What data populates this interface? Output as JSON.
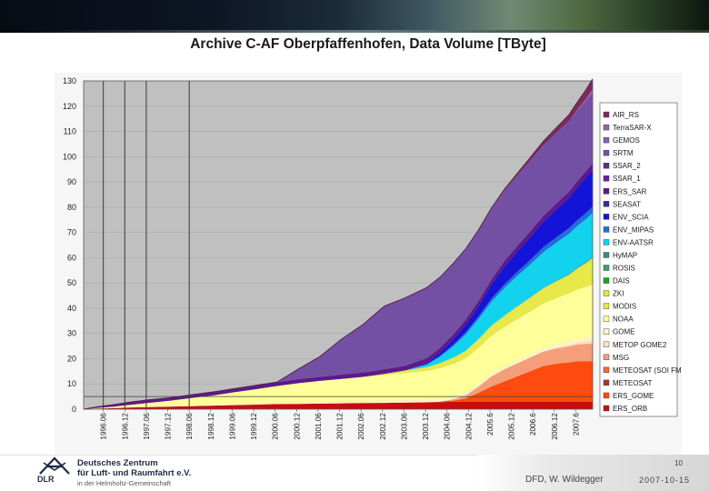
{
  "slide": {
    "title": "Archive C-AF Oberpfaffenhofen,  Data Volume [TByte]",
    "page_number": "10",
    "author": "DFD, W. Wildegger",
    "date": "2007-10-15"
  },
  "logo": {
    "acronym": "DLR",
    "line1": "Deutsches Zentrum",
    "line2": "für Luft- und Raumfahrt e.V.",
    "line3": "in der Helmholtz-Gemeinschaft"
  },
  "chart_data": {
    "type": "area",
    "stacked": true,
    "title": "Archive C-AF Oberpfaffenhofen,  Data Volume [TByte]",
    "ylim": [
      0,
      130
    ],
    "yticks": [
      0,
      10,
      20,
      30,
      40,
      50,
      60,
      70,
      80,
      90,
      100,
      110,
      120,
      130
    ],
    "x_tick_labels": [
      "1996.06",
      "1996.12",
      "1997.06",
      "1997.12",
      "1998.06",
      "1998.12",
      "1999.06",
      "1999.12",
      "2000.06",
      "2000.12",
      "2001.06",
      "2001.12",
      "2002.06",
      "2002.12",
      "2003.06",
      "2003.12",
      "2004.06",
      "2004.12",
      "2005.6",
      "2005.12",
      "2006.6",
      "2006.12",
      "2007.6"
    ],
    "xlim": [
      1996.0,
      2007.85
    ],
    "x": [
      1996.0,
      1996.3,
      1996.7,
      1997.0,
      1997.5,
      1998.0,
      1998.5,
      1999.0,
      1999.5,
      2000.0,
      2000.5,
      2001.0,
      2001.5,
      2002.0,
      2002.5,
      2003.0,
      2003.5,
      2004.0,
      2004.3,
      2004.6,
      2004.9,
      2005.2,
      2005.5,
      2005.8,
      2006.1,
      2006.4,
      2006.7,
      2007.0,
      2007.3,
      2007.5,
      2007.7,
      2007.85
    ],
    "vertical_markers": [
      "1996.06",
      "1996.12",
      "1997.06",
      "1998.06"
    ],
    "horizontal_markers": [
      5
    ],
    "series": [
      {
        "name": "AIR_RS",
        "color": "#7c2a5e",
        "values": [
          0,
          0,
          0,
          0,
          0,
          0,
          0,
          0,
          0,
          0,
          0,
          0,
          0,
          0,
          0,
          0,
          0,
          0,
          0,
          0.1,
          0.1,
          0.2,
          0.3,
          0.5,
          0.8,
          1.2,
          1.6,
          2.0,
          2.5,
          3.0,
          3.5,
          4.0
        ]
      },
      {
        "name": "TerraSAR-X",
        "color": "#9c5fa8",
        "values": [
          0,
          0,
          0,
          0,
          0,
          0,
          0,
          0,
          0,
          0,
          0,
          0,
          0,
          0,
          0,
          0,
          0,
          0,
          0,
          0,
          0,
          0,
          0,
          0,
          0,
          0,
          0,
          0,
          0,
          0.3,
          0.8,
          1.5
        ]
      },
      {
        "name": "GEMOS",
        "color": "#7d63b8",
        "values": [
          0,
          0,
          0,
          0,
          0,
          0,
          0,
          0,
          0,
          0,
          0,
          0,
          0,
          0,
          0,
          0,
          0,
          0,
          0,
          0,
          0,
          0,
          0,
          0,
          0,
          0,
          0,
          0,
          0,
          0,
          0,
          0
        ]
      },
      {
        "name": "SRTM",
        "color": "#7450a5",
        "values": [
          0,
          0,
          0,
          0,
          0,
          0,
          0,
          0,
          0,
          0,
          0,
          4.0,
          8.0,
          14.0,
          19.0,
          25.0,
          27.0,
          28.0,
          28.0,
          28.0,
          28.0,
          28.0,
          28.0,
          28.0,
          28.0,
          28.0,
          28.0,
          28.0,
          28.0,
          28.0,
          28.0,
          28.0
        ]
      },
      {
        "name": "SSAR_2",
        "color": "#5a2d8a",
        "values": [
          0,
          0,
          0,
          0,
          0,
          0,
          0,
          0,
          0,
          0,
          0,
          0,
          0,
          0,
          0,
          0,
          0,
          0,
          0,
          0,
          0,
          0,
          0,
          0,
          0,
          0,
          0,
          0,
          0,
          0,
          0,
          0
        ]
      },
      {
        "name": "SSAR_1",
        "color": "#6a22a0",
        "values": [
          0,
          0,
          0,
          0,
          0,
          0,
          0,
          0,
          0,
          0,
          0,
          0,
          0,
          0,
          0,
          0,
          0,
          0,
          0,
          0,
          0,
          0,
          0,
          0,
          0,
          0,
          0,
          0,
          0,
          0,
          0,
          0
        ]
      },
      {
        "name": "ERS_SAR",
        "color": "#5c1a8a",
        "values": [
          0.0,
          0.4,
          0.8,
          1.0,
          1.2,
          1.2,
          1.3,
          1.4,
          1.4,
          1.5,
          1.5,
          1.6,
          1.6,
          1.7,
          1.7,
          1.8,
          1.8,
          1.9,
          1.9,
          2.0,
          2.0,
          2.1,
          2.1,
          2.2,
          2.2,
          2.3,
          2.3,
          2.4,
          2.4,
          2.5,
          2.5,
          2.5
        ]
      },
      {
        "name": "SEASAT",
        "color": "#3a2a9c",
        "values": [
          0,
          0,
          0,
          0,
          0,
          0,
          0,
          0,
          0,
          0,
          0,
          0,
          0,
          0,
          0,
          0,
          0,
          0,
          0,
          0,
          0,
          0,
          0,
          0,
          0,
          0,
          0,
          0,
          0,
          0,
          0,
          0
        ]
      },
      {
        "name": "ENV_SCIA",
        "color": "#1414d8",
        "values": [
          0,
          0,
          0,
          0,
          0,
          0,
          0,
          0,
          0,
          0,
          0,
          0,
          0,
          0,
          0,
          0,
          0.0,
          0.5,
          1.2,
          2.0,
          3.0,
          4.0,
          5.5,
          7.0,
          8.0,
          9.0,
          10.0,
          11.0,
          12.0,
          13.0,
          14.0,
          14.5
        ]
      },
      {
        "name": "ENV_MIPAS",
        "color": "#1e6fd8",
        "values": [
          0,
          0,
          0,
          0,
          0,
          0,
          0,
          0,
          0,
          0,
          0,
          0,
          0,
          0,
          0,
          0,
          0.0,
          0.2,
          0.4,
          0.6,
          0.8,
          1.0,
          1.2,
          1.4,
          1.6,
          1.8,
          2.0,
          2.1,
          2.2,
          2.3,
          2.4,
          2.5
        ]
      },
      {
        "name": "ENV-AATSR",
        "color": "#12d2ee",
        "values": [
          0,
          0,
          0,
          0,
          0,
          0,
          0,
          0,
          0,
          0,
          0,
          0,
          0,
          0,
          0,
          0,
          0.0,
          1.0,
          2.5,
          4.5,
          6.5,
          8.0,
          9.5,
          11.0,
          12.0,
          13.0,
          14.0,
          15.0,
          16.0,
          16.5,
          17.0,
          17.5
        ]
      },
      {
        "name": "HyMAP",
        "color": "#3a8a86",
        "values": [
          0,
          0,
          0,
          0,
          0,
          0,
          0,
          0,
          0,
          0,
          0,
          0,
          0,
          0,
          0,
          0,
          0,
          0,
          0,
          0,
          0,
          0,
          0,
          0,
          0.1,
          0.1,
          0.2,
          0.2,
          0.2,
          0.3,
          0.3,
          0.3
        ]
      },
      {
        "name": "ROSIS",
        "color": "#3f9f62",
        "values": [
          0,
          0,
          0,
          0,
          0,
          0,
          0,
          0,
          0,
          0,
          0,
          0,
          0,
          0,
          0,
          0,
          0,
          0,
          0,
          0,
          0,
          0,
          0,
          0,
          0,
          0,
          0,
          0,
          0,
          0,
          0,
          0
        ]
      },
      {
        "name": "DAIS",
        "color": "#14aa14",
        "values": [
          0,
          0,
          0,
          0,
          0,
          0,
          0,
          0,
          0,
          0,
          0,
          0,
          0,
          0,
          0,
          0,
          0,
          0,
          0,
          0,
          0,
          0,
          0,
          0,
          0,
          0,
          0,
          0,
          0,
          0,
          0,
          0
        ]
      },
      {
        "name": "ZKI",
        "color": "#e3e341",
        "values": [
          0,
          0,
          0,
          0,
          0,
          0,
          0,
          0,
          0,
          0,
          0,
          0,
          0,
          0,
          0,
          0,
          0,
          0,
          0,
          0,
          0,
          0,
          0,
          0,
          0,
          0.1,
          0.2,
          0.3,
          0.4,
          0.5,
          0.6,
          0.7
        ]
      },
      {
        "name": "MODIS",
        "color": "#e8e84a",
        "values": [
          0,
          0,
          0,
          0,
          0,
          0,
          0,
          0,
          0,
          0,
          0,
          0,
          0,
          0,
          0.0,
          0.5,
          1.0,
          1.5,
          2.0,
          2.5,
          3.0,
          3.5,
          4.0,
          4.5,
          5.0,
          5.5,
          6.0,
          6.5,
          7.0,
          8.0,
          9.0,
          10.0
        ]
      },
      {
        "name": "NOAA",
        "color": "#ffff99",
        "values": [
          0.0,
          0.2,
          0.4,
          0.8,
          1.4,
          2.0,
          2.8,
          3.6,
          4.6,
          5.6,
          6.6,
          7.6,
          8.3,
          9.0,
          9.6,
          10.2,
          10.9,
          11.6,
          12.3,
          13.0,
          13.7,
          14.3,
          15.0,
          15.6,
          16.3,
          16.9,
          17.6,
          18.2,
          18.9,
          19.5,
          20.1,
          20.5
        ]
      },
      {
        "name": "GOME",
        "color": "#fff2c8",
        "values": [
          0.0,
          0.1,
          0.2,
          0.2,
          0.3,
          0.3,
          0.4,
          0.4,
          0.5,
          0.5,
          0.6,
          0.6,
          0.7,
          0.7,
          0.8,
          0.8,
          0.9,
          0.9,
          1.0,
          1.0,
          1.1,
          1.1,
          1.2,
          1.2,
          1.3,
          1.3,
          1.4,
          1.4,
          1.5,
          1.5,
          1.6,
          1.6
        ]
      },
      {
        "name": "METOP GOME2",
        "color": "#fde0bf",
        "values": [
          0,
          0,
          0,
          0,
          0,
          0,
          0,
          0,
          0,
          0,
          0,
          0,
          0,
          0,
          0,
          0,
          0,
          0,
          0,
          0,
          0,
          0,
          0,
          0,
          0,
          0,
          0,
          0.3,
          0.6,
          0.8,
          1.0,
          1.2
        ]
      },
      {
        "name": "MSG",
        "color": "#f49e7a",
        "values": [
          0,
          0,
          0,
          0,
          0,
          0,
          0,
          0,
          0,
          0,
          0,
          0,
          0,
          0,
          0,
          0,
          0,
          0,
          0,
          0.5,
          1.2,
          2.5,
          4.0,
          4.8,
          5.2,
          5.5,
          5.8,
          6.0,
          6.4,
          6.6,
          6.8,
          7.0
        ]
      },
      {
        "name": "METEOSAT (SOI FMI)",
        "color": "#ee6a3a",
        "values": [
          0,
          0,
          0,
          0,
          0,
          0,
          0,
          0,
          0,
          0,
          0,
          0,
          0,
          0,
          0,
          0,
          0,
          0,
          0,
          0,
          0,
          0,
          0,
          0,
          0,
          0,
          0,
          0,
          0,
          0,
          0,
          0
        ]
      },
      {
        "name": "METEOSAT",
        "color": "#a33b33",
        "values": [
          0,
          0,
          0,
          0,
          0,
          0,
          0,
          0,
          0,
          0,
          0,
          0,
          0,
          0,
          0,
          0,
          0,
          0,
          0,
          0,
          0,
          0,
          0,
          0,
          0,
          0,
          0,
          0,
          0,
          0,
          0,
          0
        ]
      },
      {
        "name": "ERS_GOME",
        "color": "#ff4a10",
        "values": [
          0,
          0,
          0,
          0,
          0,
          0,
          0,
          0,
          0,
          0,
          0,
          0,
          0,
          0,
          0,
          0,
          0.0,
          0.0,
          0.2,
          0.5,
          1.2,
          3.5,
          6.0,
          8.0,
          10.0,
          12.0,
          14.0,
          15.0,
          15.5,
          16.0,
          16.0,
          16.0
        ]
      },
      {
        "name": "ERS_ORB",
        "color": "#c80d0d",
        "values": [
          0.0,
          0.2,
          0.4,
          0.6,
          0.8,
          1.0,
          1.2,
          1.4,
          1.6,
          1.8,
          2.0,
          2.1,
          2.2,
          2.3,
          2.4,
          2.5,
          2.6,
          2.7,
          2.8,
          2.9,
          3.0,
          3.0,
          3.0,
          3.0,
          3.0,
          3.0,
          3.0,
          3.0,
          3.0,
          3.0,
          3.0,
          3.0
        ]
      }
    ]
  }
}
